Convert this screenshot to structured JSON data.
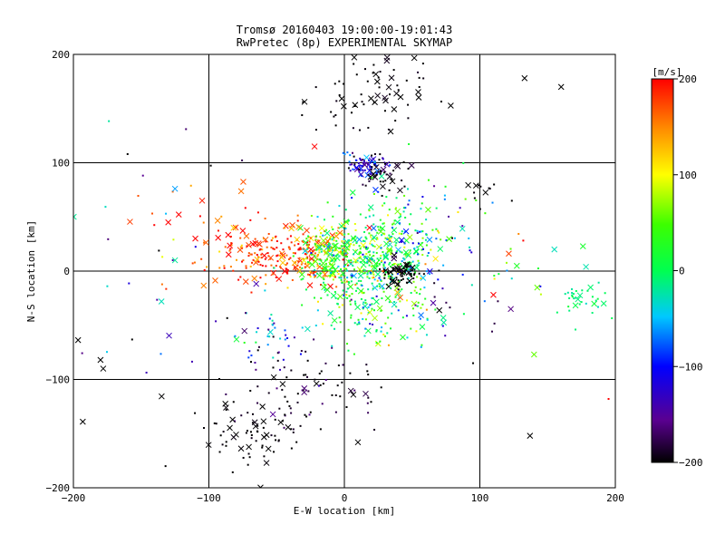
{
  "chart_data": {
    "type": "scatter",
    "title": "Tromsø 20160403 19:00:00-19:01:43",
    "subtitle": "RwPretec (8p) EXPERIMENTAL SKYMAP",
    "xlabel": "E-W location [km]",
    "ylabel": "N-S location [km]",
    "xlim": [
      -200,
      200
    ],
    "ylim": [
      -200,
      200
    ],
    "xticks": [
      -200,
      -100,
      0,
      100,
      200
    ],
    "yticks": [
      -200,
      -100,
      0,
      100,
      200
    ],
    "grid": true,
    "colorbar": {
      "label": "[m/s]",
      "range": [
        -200,
        200
      ],
      "ticks": [
        200,
        100,
        0,
        -100,
        -200
      ],
      "colormap": "rainbow (black-purple-blue-cyan-green-yellow-red)"
    },
    "clusters": [
      {
        "cx": -40,
        "cy": 15,
        "sx": 22,
        "sy": 14,
        "n": 220,
        "v": 180,
        "vs": 25
      },
      {
        "cx": -12,
        "cy": 20,
        "sx": 10,
        "sy": 14,
        "n": 90,
        "v": 80,
        "vs": 35
      },
      {
        "cx": 12,
        "cy": 5,
        "sx": 22,
        "sy": 22,
        "n": 380,
        "v": 20,
        "vs": 45
      },
      {
        "cx": 40,
        "cy": 30,
        "sx": 18,
        "sy": 25,
        "n": 120,
        "v": -10,
        "vs": 50
      },
      {
        "cx": 42,
        "cy": -2,
        "sx": 6,
        "sy": 5,
        "n": 60,
        "v": -200,
        "vs": 10
      },
      {
        "cx": 15,
        "cy": 98,
        "sx": 8,
        "sy": 5,
        "n": 70,
        "v": -130,
        "vs": 40
      },
      {
        "cx": 25,
        "cy": 90,
        "sx": 9,
        "sy": 8,
        "n": 40,
        "v": -200,
        "vs": 10
      },
      {
        "cx": 30,
        "cy": 170,
        "sx": 18,
        "sy": 22,
        "n": 60,
        "v": -200,
        "vs": 5
      },
      {
        "cx": -30,
        "cy": -110,
        "sx": 25,
        "sy": 20,
        "n": 80,
        "v": -190,
        "vs": 20
      },
      {
        "cx": -70,
        "cy": -150,
        "sx": 20,
        "sy": 18,
        "n": 70,
        "v": -200,
        "vs": 5
      },
      {
        "cx": -55,
        "cy": -60,
        "sx": 12,
        "sy": 18,
        "n": 45,
        "v": -90,
        "vs": 60
      },
      {
        "cx": 25,
        "cy": -40,
        "sx": 25,
        "sy": 18,
        "n": 90,
        "v": 10,
        "vs": 60
      },
      {
        "cx": 60,
        "cy": 40,
        "sx": 25,
        "sy": 30,
        "n": 60,
        "v": -60,
        "vs": 70
      },
      {
        "cx": 180,
        "cy": -25,
        "sx": 12,
        "sy": 10,
        "n": 35,
        "v": -5,
        "vs": 15
      },
      {
        "cx": 100,
        "cy": 70,
        "sx": 8,
        "sy": 8,
        "n": 12,
        "v": -200,
        "vs": 5
      },
      {
        "cx": -90,
        "cy": 30,
        "sx": 25,
        "sy": 25,
        "n": 40,
        "v": 170,
        "vs": 40
      },
      {
        "cx": -10,
        "cy": 150,
        "sx": 15,
        "sy": 15,
        "n": 15,
        "v": -200,
        "vs": 5
      },
      {
        "cx": -130,
        "cy": 0,
        "sx": 40,
        "sy": 80,
        "n": 30,
        "v": -120,
        "vs": 90
      },
      {
        "cx": 120,
        "cy": 20,
        "sx": 40,
        "sy": 30,
        "n": 25,
        "v": 60,
        "vs": 70
      },
      {
        "cx": 70,
        "cy": -30,
        "sx": 25,
        "sy": 20,
        "n": 30,
        "v": -150,
        "vs": 50
      }
    ],
    "named_points": [
      {
        "x": 133,
        "y": 178,
        "v": -200,
        "m": "x"
      },
      {
        "x": 160,
        "y": 170,
        "v": -200,
        "m": "x"
      },
      {
        "x": -180,
        "y": -82,
        "v": -200,
        "m": "x"
      },
      {
        "x": -178,
        "y": -90,
        "v": -200,
        "m": "x"
      },
      {
        "x": 137,
        "y": -152,
        "v": -200,
        "m": "x"
      },
      {
        "x": 10,
        "y": -158,
        "v": -200,
        "m": "x"
      },
      {
        "x": -160,
        "y": 108,
        "v": -200,
        "m": "d"
      },
      {
        "x": -125,
        "y": 76,
        "v": -60,
        "m": "x"
      },
      {
        "x": -130,
        "y": 45,
        "v": 200,
        "m": "x"
      },
      {
        "x": -110,
        "y": 30,
        "v": 200,
        "m": "x"
      },
      {
        "x": -105,
        "y": 65,
        "v": 190,
        "m": "x"
      },
      {
        "x": -22,
        "y": 115,
        "v": 200,
        "m": "x"
      },
      {
        "x": 155,
        "y": 20,
        "v": -30,
        "m": "x"
      },
      {
        "x": 110,
        "y": -22,
        "v": 200,
        "m": "x"
      },
      {
        "x": 140,
        "y": -77,
        "v": 60,
        "m": "x"
      },
      {
        "x": 195,
        "y": -118,
        "v": 200,
        "m": "d"
      },
      {
        "x": -135,
        "y": -28,
        "v": -30,
        "m": "x"
      },
      {
        "x": -125,
        "y": 10,
        "v": -20,
        "m": "x"
      },
      {
        "x": -132,
        "y": -180,
        "v": -200,
        "m": "d"
      },
      {
        "x": 95,
        "y": -85,
        "v": -200,
        "m": "d"
      }
    ]
  }
}
